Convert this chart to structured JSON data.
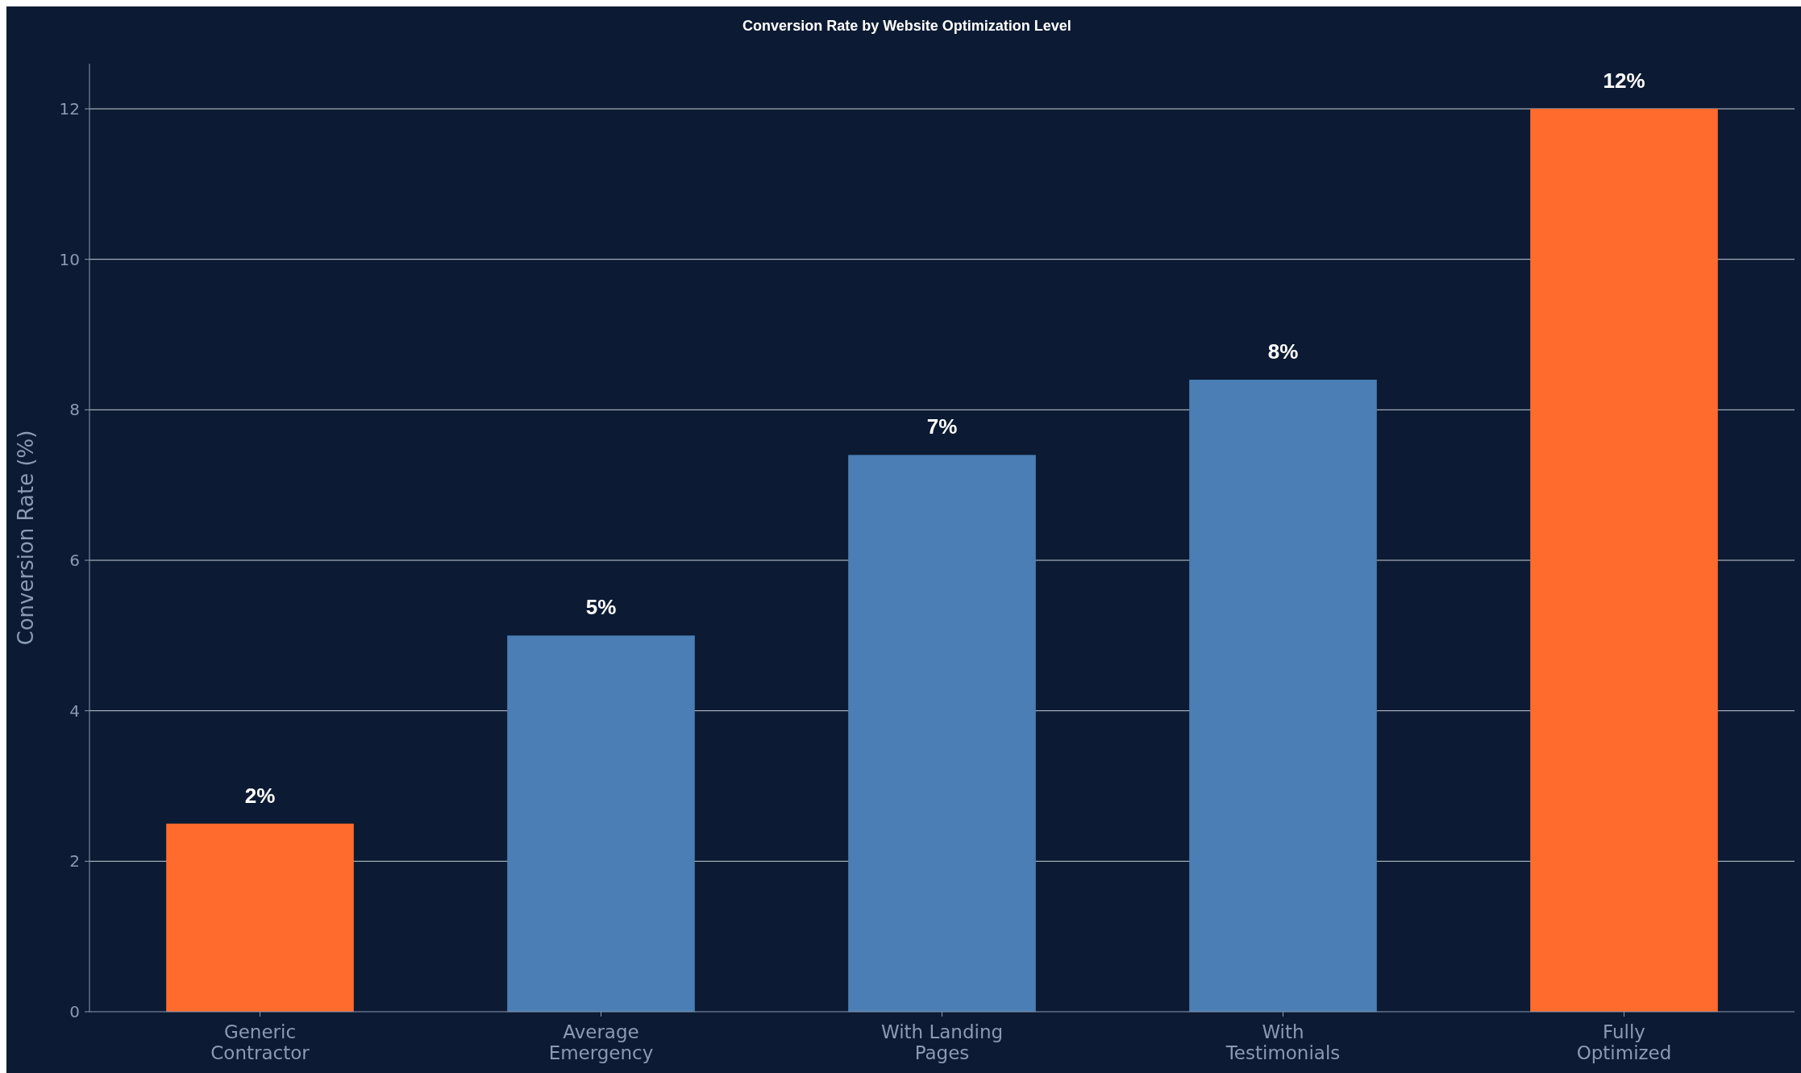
{
  "chart_data": {
    "type": "bar",
    "title": "Conversion Rate by Website Optimization Level",
    "ylabel": "Conversion Rate (%)",
    "categories": [
      "Generic\nContractor",
      "Average\nEmergency",
      "With Landing\nPages",
      "With\nTestimonials",
      "Fully\nOptimized"
    ],
    "values": [
      2.5,
      5,
      7.4,
      8.4,
      12
    ],
    "colors": [
      "#ff6b2c",
      "#4a7eb4",
      "#4a7eb4",
      "#4a7eb4",
      "#ff6b2c"
    ],
    "value_labels": [
      "2%",
      "5%",
      "7%",
      "8%",
      "12%"
    ],
    "ylim": [
      0,
      12.6
    ],
    "yticks": [
      0,
      2,
      4,
      6,
      8,
      10,
      12
    ],
    "grid": "y"
  }
}
